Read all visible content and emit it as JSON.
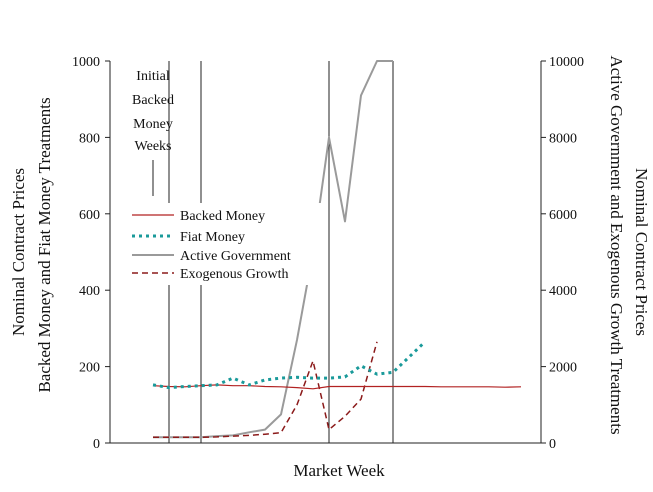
{
  "chart_data": {
    "type": "line",
    "xlabel": "Market Week",
    "ylabel_left": [
      "Nominal Contract Prices",
      "Backed Money and Fiat Money Treatments"
    ],
    "ylabel_right": [
      "Nominal Contract Prices",
      "Active Government and Exogenous Growth Treatments"
    ],
    "annotation": [
      "Initial",
      "Backed",
      "Money",
      "Weeks"
    ],
    "ylim_left": [
      0,
      1000
    ],
    "ylim_right": [
      0,
      10000
    ],
    "yticks_left": [
      "0",
      "200",
      "400",
      "600",
      "800",
      "1000"
    ],
    "yticks_right": [
      "0",
      "2000",
      "4000",
      "6000",
      "8000",
      "10000"
    ],
    "x": [
      1,
      2,
      3,
      4,
      5,
      6,
      7,
      8,
      9,
      10,
      11,
      12,
      13,
      14,
      15,
      16,
      17,
      18,
      19,
      20,
      21,
      22,
      23,
      24
    ],
    "legend": {
      "position": "left-center"
    },
    "series": [
      {
        "name": "Backed Money",
        "axis": "left",
        "color": "#b22222",
        "style": "solid",
        "values": [
          150,
          148,
          147,
          150,
          152,
          150,
          150,
          148,
          147,
          145,
          142,
          148,
          148,
          148,
          148,
          148,
          148,
          148,
          147,
          147,
          147,
          147,
          146,
          147
        ]
      },
      {
        "name": "Fiat Money",
        "axis": "left",
        "color": "#1a9a9a",
        "style": "dotted",
        "values": [
          152,
          145,
          148,
          150,
          152,
          170,
          152,
          165,
          170,
          172,
          170,
          170,
          173,
          202,
          180,
          185,
          225,
          265,
          null,
          null,
          null,
          null,
          null,
          null
        ]
      },
      {
        "name": "Active Government",
        "axis": "right",
        "color": "#9a9a9a",
        "style": "solid",
        "values": [
          150,
          150,
          150,
          150,
          180,
          200,
          280,
          350,
          750,
          2700,
          5000,
          8000,
          5800,
          9100,
          10000,
          10000,
          null,
          null,
          null,
          null,
          null,
          null,
          null,
          null
        ]
      },
      {
        "name": "Exogenous Growth",
        "axis": "right",
        "color": "#8b1a1a",
        "style": "dashed",
        "values": [
          150,
          150,
          150,
          150,
          160,
          180,
          200,
          230,
          270,
          1000,
          2150,
          350,
          700,
          1150,
          2650,
          null,
          null,
          null,
          null,
          null,
          null,
          null,
          null,
          null
        ]
      }
    ],
    "vertical_lines_at_x": [
      2,
      4,
      12,
      16
    ]
  }
}
